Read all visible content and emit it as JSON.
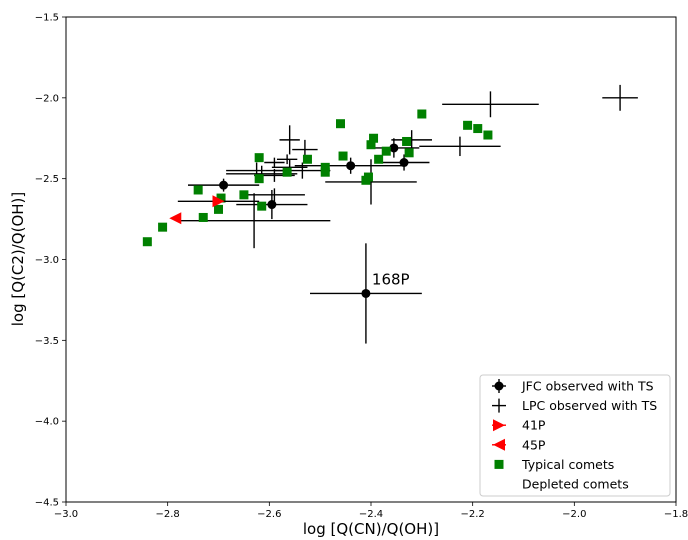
{
  "chart_data": {
    "type": "scatter",
    "xlabel": "log [Q(CN)/Q(OH)]",
    "ylabel": "log [Q(C2)/Q(OH)]",
    "xlim": [
      -3.0,
      -1.8
    ],
    "ylim": [
      -4.5,
      -1.5
    ],
    "xticks": [
      -3.0,
      -2.8,
      -2.6,
      -2.4,
      -2.2,
      -2.0,
      -1.8
    ],
    "yticks": [
      -4.5,
      -4.0,
      -3.5,
      -3.0,
      -2.5,
      -2.0,
      -1.5
    ],
    "xtick_labels": [
      "−3.0",
      "−2.8",
      "−2.6",
      "−2.4",
      "−2.2",
      "−2.0",
      "−1.8"
    ],
    "ytick_labels": [
      "−4.5",
      "−4.0",
      "−3.5",
      "−3.0",
      "−2.5",
      "−2.0",
      "−1.5"
    ],
    "legend_position": "lower-right",
    "colors": {
      "jfc": "#000000",
      "lpc": "#000000",
      "p41": "#ff0000",
      "p45": "#ff0000",
      "typical": "#008000"
    },
    "series": [
      {
        "name": "JFC observed with TS",
        "marker": "circle",
        "points": [
          {
            "x": -2.69,
            "y": -2.54,
            "xerr": 0.07,
            "yerr": 0.04
          },
          {
            "x": -2.595,
            "y": -2.66,
            "xerr": 0.07,
            "yerr": 0.09
          },
          {
            "x": -2.44,
            "y": -2.42,
            "xerr": 0.11,
            "yerr": 0.05
          },
          {
            "x": -2.355,
            "y": -2.31,
            "xerr": 0.05,
            "yerr": 0.06
          },
          {
            "x": -2.335,
            "y": -2.4,
            "xerr": 0.05,
            "yerr": 0.05
          },
          {
            "x": -2.41,
            "y": -3.21,
            "xerr": 0.11,
            "yerr": 0.31
          }
        ]
      },
      {
        "name": "LPC observed with TS",
        "marker": "plus",
        "points": [
          {
            "x": -1.91,
            "y": -2.0,
            "xerr": 0.035,
            "yerr": 0.08
          },
          {
            "x": -2.165,
            "y": -2.04,
            "xerr": 0.095,
            "yerr": 0.08
          },
          {
            "x": -2.56,
            "y": -2.26,
            "xerr": 0.02,
            "yerr": 0.09
          },
          {
            "x": -2.53,
            "y": -2.32,
            "xerr": 0.025,
            "yerr": 0.06
          },
          {
            "x": -2.225,
            "y": -2.3,
            "xerr": 0.08,
            "yerr": 0.06
          },
          {
            "x": -2.32,
            "y": -2.26,
            "xerr": 0.04,
            "yerr": 0.06
          },
          {
            "x": -2.56,
            "y": -2.43,
            "xerr": 0.035,
            "yerr": 0.05
          },
          {
            "x": -2.625,
            "y": -2.45,
            "xerr": 0.06,
            "yerr": 0.05
          },
          {
            "x": -2.615,
            "y": -2.47,
            "xerr": 0.07,
            "yerr": 0.05
          },
          {
            "x": -2.59,
            "y": -2.48,
            "xerr": 0.04,
            "yerr": 0.04
          },
          {
            "x": -2.535,
            "y": -2.45,
            "xerr": 0.055,
            "yerr": 0.05
          },
          {
            "x": -2.4,
            "y": -2.52,
            "xerr": 0.09,
            "yerr": 0.14
          },
          {
            "x": -2.59,
            "y": -2.6,
            "xerr": 0.06,
            "yerr": 0.04
          },
          {
            "x": -2.63,
            "y": -2.76,
            "xerr": 0.15,
            "yerr": 0.17
          },
          {
            "x": -2.565,
            "y": -2.38,
            "xerr": 0.02,
            "yerr": 0.03
          },
          {
            "x": -2.59,
            "y": -2.4,
            "xerr": 0.02,
            "yerr": 0.03
          }
        ]
      },
      {
        "name": "41P",
        "marker": "triangle-right",
        "points": [
          {
            "x": -2.7,
            "y": -2.64,
            "xerr": 0.08
          }
        ]
      },
      {
        "name": "45P",
        "marker": "triangle-left",
        "points": [
          {
            "x": -2.785,
            "y": -2.745
          }
        ]
      },
      {
        "name": "Typical comets",
        "marker": "square",
        "points": [
          {
            "x": -2.84,
            "y": -2.89
          },
          {
            "x": -2.81,
            "y": -2.8
          },
          {
            "x": -2.74,
            "y": -2.57
          },
          {
            "x": -2.73,
            "y": -2.74
          },
          {
            "x": -2.7,
            "y": -2.69
          },
          {
            "x": -2.695,
            "y": -2.62
          },
          {
            "x": -2.65,
            "y": -2.6
          },
          {
            "x": -2.62,
            "y": -2.37
          },
          {
            "x": -2.62,
            "y": -2.5
          },
          {
            "x": -2.615,
            "y": -2.67
          },
          {
            "x": -2.565,
            "y": -2.46
          },
          {
            "x": -2.525,
            "y": -2.38
          },
          {
            "x": -2.49,
            "y": -2.43
          },
          {
            "x": -2.49,
            "y": -2.46
          },
          {
            "x": -2.46,
            "y": -2.16
          },
          {
            "x": -2.455,
            "y": -2.36
          },
          {
            "x": -2.41,
            "y": -2.51
          },
          {
            "x": -2.405,
            "y": -2.49
          },
          {
            "x": -2.4,
            "y": -2.29
          },
          {
            "x": -2.395,
            "y": -2.25
          },
          {
            "x": -2.385,
            "y": -2.38
          },
          {
            "x": -2.37,
            "y": -2.33
          },
          {
            "x": -2.33,
            "y": -2.27
          },
          {
            "x": -2.325,
            "y": -2.34
          },
          {
            "x": -2.3,
            "y": -2.1
          },
          {
            "x": -2.21,
            "y": -2.17
          },
          {
            "x": -2.19,
            "y": -2.19
          },
          {
            "x": -2.17,
            "y": -2.23
          }
        ]
      },
      {
        "name": "Depleted comets",
        "marker": "none",
        "points": []
      }
    ],
    "annotations": [
      {
        "text": "168P",
        "x": -2.41,
        "y": -3.21
      }
    ]
  }
}
